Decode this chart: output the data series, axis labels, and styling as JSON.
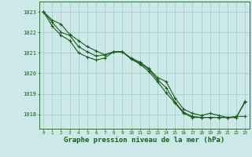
{
  "background_color": "#cce8e8",
  "grid_color": "#aad0d0",
  "line_color": "#1a5c1a",
  "marker_color": "#1a5c1a",
  "xlabel": "Graphe pression niveau de la mer (hPa)",
  "xlabel_fontsize": 6.5,
  "ylabel_values": [
    1018,
    1019,
    1020,
    1021,
    1022,
    1023
  ],
  "xlim": [
    -0.5,
    23.5
  ],
  "ylim": [
    1017.3,
    1023.5
  ],
  "x_ticks": [
    0,
    1,
    2,
    3,
    4,
    5,
    6,
    7,
    8,
    9,
    10,
    11,
    12,
    13,
    14,
    15,
    16,
    17,
    18,
    19,
    20,
    21,
    22,
    23
  ],
  "series": [
    [
      1023.0,
      1022.6,
      1022.4,
      1021.9,
      1021.6,
      1021.3,
      1021.1,
      1020.9,
      1021.05,
      1021.05,
      1020.7,
      1020.45,
      1020.1,
      1019.6,
      1019.05,
      1018.55,
      1018.05,
      1017.85,
      1017.85,
      1017.85,
      1017.85,
      1017.85,
      1017.9,
      1017.9
    ],
    [
      1023.0,
      1022.5,
      1022.0,
      1021.85,
      1021.3,
      1021.05,
      1020.85,
      1020.9,
      1021.05,
      1021.05,
      1020.7,
      1020.5,
      1020.2,
      1019.7,
      1019.3,
      1018.6,
      1018.1,
      1017.9,
      1017.85,
      1017.85,
      1017.85,
      1017.85,
      1017.85,
      1018.6
    ],
    [
      1023.0,
      1022.3,
      1021.85,
      1021.6,
      1021.0,
      1020.8,
      1020.65,
      1020.75,
      1021.05,
      1021.05,
      1020.75,
      1020.55,
      1020.25,
      1019.8,
      1019.6,
      1018.8,
      1018.25,
      1018.05,
      1017.95,
      1018.05,
      1017.95,
      1017.85,
      1017.85,
      1018.65
    ]
  ]
}
